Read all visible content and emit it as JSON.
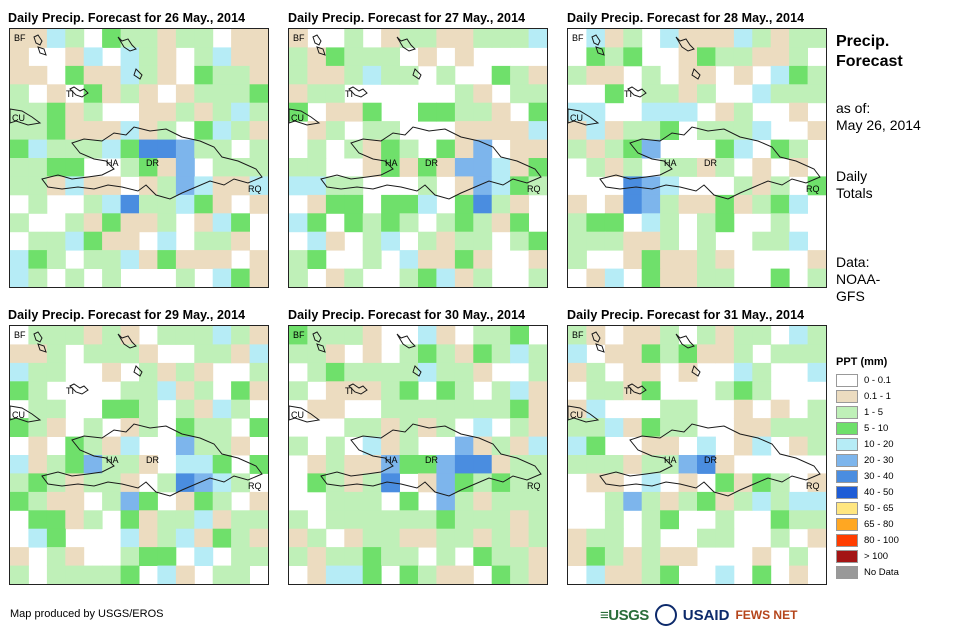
{
  "panels": [
    {
      "title": "Daily Precip. Forecast for 26 May., 2014",
      "seed": 1,
      "wet": 0.45
    },
    {
      "title": "Daily Precip. Forecast for 27 May., 2014",
      "seed": 2,
      "wet": 0.55
    },
    {
      "title": "Daily Precip. Forecast for 28 May., 2014",
      "seed": 3,
      "wet": 0.5
    },
    {
      "title": "Daily Precip. Forecast for 29 May., 2014",
      "seed": 4,
      "wet": 0.65
    },
    {
      "title": "Daily Precip. Forecast for 30 May., 2014",
      "seed": 5,
      "wet": 0.6
    },
    {
      "title": "Daily Precip. Forecast for 31 May., 2014",
      "seed": 6,
      "wet": 0.5
    }
  ],
  "map_labels": {
    "bf": "BF",
    "ti": "TI",
    "cu": "CU",
    "ha": "HA",
    "dr": "DR",
    "rq": "RQ"
  },
  "side": {
    "title_line1": "Precip.",
    "title_line2": "Forecast",
    "asof_line1": "as of:",
    "asof_line2": "May 26, 2014",
    "daily_line1": "Daily",
    "daily_line2": "Totals",
    "data_line1": "Data:",
    "data_line2": "NOAA-",
    "data_line3": "GFS"
  },
  "legend": {
    "title": "PPT (mm)",
    "classes": [
      {
        "label": "0 - 0.1",
        "color": "#ffffff"
      },
      {
        "label": "0.1 - 1",
        "color": "#ecdcc0"
      },
      {
        "label": "1 - 5",
        "color": "#bff0b8"
      },
      {
        "label": "5 - 10",
        "color": "#6fe06b"
      },
      {
        "label": "10 - 20",
        "color": "#b6ecf6"
      },
      {
        "label": "20 - 30",
        "color": "#7db5ec"
      },
      {
        "label": "30 - 40",
        "color": "#4a8de0"
      },
      {
        "label": "40 - 50",
        "color": "#1e5cd6"
      },
      {
        "label": "50 - 65",
        "color": "#ffe680"
      },
      {
        "label": "65 - 80",
        "color": "#ffa722"
      },
      {
        "label": "80 - 100",
        "color": "#ff3d00"
      },
      {
        "label": "> 100",
        "color": "#a31515"
      },
      {
        "label": "No Data",
        "color": "#999999"
      }
    ]
  },
  "credit": "Map produced by USGS/EROS",
  "logos": {
    "usgs": "≡USGS",
    "usaid": "USAID",
    "fews": "FEWS NET"
  }
}
